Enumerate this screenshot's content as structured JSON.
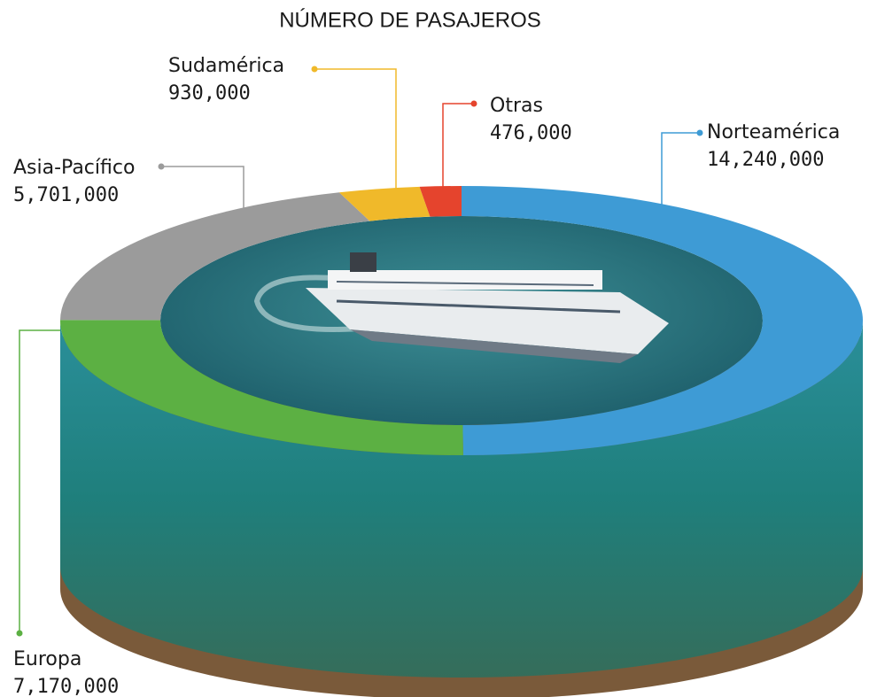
{
  "chart_data": {
    "type": "donut",
    "title": "NÚMERO DE PASAJEROS",
    "categories": [
      "Norteamérica",
      "Europa",
      "Asia-Pacífico",
      "Sudamérica",
      "Otras"
    ],
    "values": [
      14240000,
      7170000,
      5701000,
      930000,
      476000
    ],
    "value_labels": [
      "14,240,000",
      "7,170,000",
      "5,701,000",
      "930,000",
      "476,000"
    ],
    "colors": [
      "#3e9bd5",
      "#5cb043",
      "#9b9b9b",
      "#f0b92a",
      "#e5442d"
    ]
  }
}
